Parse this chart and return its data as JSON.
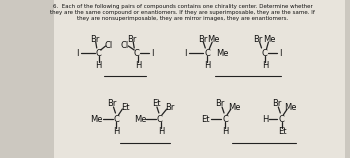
{
  "bg_color": "#ccc8c0",
  "paper_color": "#e8e4dc",
  "text_color": "#111111",
  "line_color": "#222222",
  "header_lines": [
    "6.  Each of the following pairs of compounds contains one chirality center. Determine whether",
    "they are the same compound or enantiomers. If they are superimposable, they are the same. If",
    "they are nonsuperimposable, they are mirror images, they are enantiomers."
  ],
  "font_size": 4.0,
  "label_fs": 6.0
}
